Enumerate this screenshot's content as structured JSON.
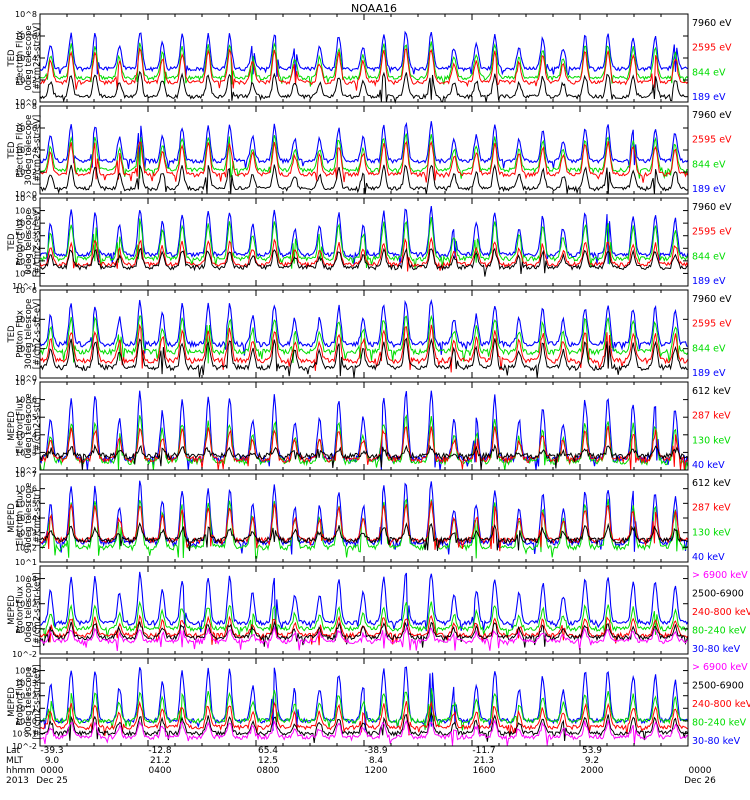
{
  "chart_data": [
    {
      "type": "line",
      "ylabel": "TED\nElectron Flux\n0deg telescope\n[#/cm2-s-str-eV]",
      "yticks": [
        "10^0",
        "10^2",
        "10^4",
        "10^6",
        "10^8"
      ],
      "ylog": true,
      "ylim": [
        1,
        100000000
      ],
      "legend": [
        {
          "name": "7960 eV",
          "color": "#000000"
        },
        {
          "name": "2595 eV",
          "color": "#ff0000"
        },
        {
          "name": "844 eV",
          "color": "#00dd00"
        },
        {
          "name": "189 eV",
          "color": "#0000ff"
        }
      ],
      "series": [
        {
          "name": "189 eV",
          "color": "#0000ff",
          "base": 1000,
          "peak": 3000000
        },
        {
          "name": "844 eV",
          "color": "#00dd00",
          "base": 150,
          "peak": 300000
        },
        {
          "name": "2595 eV",
          "color": "#ff0000",
          "base": 60,
          "peak": 80000
        },
        {
          "name": "7960 eV",
          "color": "#000000",
          "base": 3,
          "peak": 500
        }
      ]
    },
    {
      "type": "line",
      "ylabel": "TED\nElectron Flux\n30deg telescope\n[#/cm2-s-str-eV]",
      "yticks": [
        "10^0",
        "10^2",
        "10^4",
        "10^6",
        "10^8"
      ],
      "ylog": true,
      "ylim": [
        1,
        100000000
      ],
      "legend": [
        {
          "name": "7960 eV",
          "color": "#000000"
        },
        {
          "name": "2595 eV",
          "color": "#ff0000"
        },
        {
          "name": "844 eV",
          "color": "#00dd00"
        },
        {
          "name": "189 eV",
          "color": "#0000ff"
        }
      ],
      "series": [
        {
          "name": "189 eV",
          "color": "#0000ff",
          "base": 1000,
          "peak": 3000000
        },
        {
          "name": "844 eV",
          "color": "#00dd00",
          "base": 150,
          "peak": 300000
        },
        {
          "name": "2595 eV",
          "color": "#ff0000",
          "base": 60,
          "peak": 80000
        },
        {
          "name": "7960 eV",
          "color": "#000000",
          "base": 3,
          "peak": 500
        }
      ]
    },
    {
      "type": "line",
      "ylabel": "TED\nProton Flux\n0deg telescope\n[#/cm2-s-str-eV]",
      "yticks": [
        "10^-1",
        "10^0",
        "10^1",
        "10^2",
        "10^3",
        "10^4",
        "10^5",
        "10^6"
      ],
      "ylog": true,
      "ylim": [
        0.1,
        1000000
      ],
      "legend": [
        {
          "name": "7960 eV",
          "color": "#000000"
        },
        {
          "name": "2595 eV",
          "color": "#ff0000"
        },
        {
          "name": "844 eV",
          "color": "#00dd00"
        },
        {
          "name": "189 eV",
          "color": "#0000ff"
        }
      ],
      "series": [
        {
          "name": "189 eV",
          "color": "#0000ff",
          "base": 30,
          "peak": 200000
        },
        {
          "name": "844 eV",
          "color": "#00dd00",
          "base": 15,
          "peak": 20000
        },
        {
          "name": "2595 eV",
          "color": "#ff0000",
          "base": 5,
          "peak": 500
        },
        {
          "name": "7960 eV",
          "color": "#000000",
          "base": 3,
          "peak": 100
        }
      ]
    },
    {
      "type": "line",
      "ylabel": "TED\nProton Flux\n30deg telescope\n[#/cm2-s-str-eV]",
      "yticks": [
        "10^0",
        "10^2",
        "10^4",
        "10^6"
      ],
      "ylog": true,
      "ylim": [
        1,
        1000000
      ],
      "legend": [
        {
          "name": "7960 eV",
          "color": "#000000"
        },
        {
          "name": "2595 eV",
          "color": "#ff0000"
        },
        {
          "name": "844 eV",
          "color": "#00dd00"
        },
        {
          "name": "189 eV",
          "color": "#0000ff"
        }
      ],
      "series": [
        {
          "name": "189 eV",
          "color": "#0000ff",
          "base": 200,
          "peak": 200000
        },
        {
          "name": "844 eV",
          "color": "#00dd00",
          "base": 60,
          "peak": 20000
        },
        {
          "name": "2595 eV",
          "color": "#ff0000",
          "base": 15,
          "peak": 3000
        },
        {
          "name": "7960 eV",
          "color": "#000000",
          "base": 5,
          "peak": 500
        }
      ]
    },
    {
      "type": "line",
      "ylabel": "MEPED\nElectron Flux\n0deg telescope\n[#/cm2-s-str]",
      "yticks": [
        "10^2",
        "10^3",
        "10^4",
        "10^5",
        "10^6",
        "10^7"
      ],
      "ylog": true,
      "ylim": [
        100,
        10000000
      ],
      "legend": [
        {
          "name": "612 keV",
          "color": "#000000"
        },
        {
          "name": "287 keV",
          "color": "#ff0000"
        },
        {
          "name": "130 keV",
          "color": "#00dd00"
        },
        {
          "name": "40 keV",
          "color": "#0000ff"
        }
      ],
      "series": [
        {
          "name": "40 keV",
          "color": "#0000ff",
          "base": 400,
          "peak": 3000000
        },
        {
          "name": "130 keV",
          "color": "#00dd00",
          "base": 300,
          "peak": 100000
        },
        {
          "name": "287 keV",
          "color": "#ff0000",
          "base": 400,
          "peak": 30000
        },
        {
          "name": "612 keV",
          "color": "#000000",
          "base": 600,
          "peak": 2000
        }
      ]
    },
    {
      "type": "line",
      "ylabel": "MEPED\nElectron Flux\n90deg telescope\n[#/cm2-s-str]",
      "yticks": [
        "10^1",
        "10^2",
        "10^3",
        "10^4",
        "10^5",
        "10^6",
        "10^7"
      ],
      "ylog": true,
      "ylim": [
        10,
        10000000
      ],
      "legend": [
        {
          "name": "612 keV",
          "color": "#000000"
        },
        {
          "name": "287 keV",
          "color": "#ff0000"
        },
        {
          "name": "130 keV",
          "color": "#00dd00"
        },
        {
          "name": "40 keV",
          "color": "#0000ff"
        }
      ],
      "series": [
        {
          "name": "40 keV",
          "color": "#0000ff",
          "base": 200,
          "peak": 3000000
        },
        {
          "name": "130 keV",
          "color": "#00dd00",
          "base": 100,
          "peak": 300000
        },
        {
          "name": "287 keV",
          "color": "#ff0000",
          "base": 300,
          "peak": 100000
        },
        {
          "name": "612 keV",
          "color": "#000000",
          "base": 300,
          "peak": 3000
        }
      ]
    },
    {
      "type": "line",
      "ylabel": "MEPED\nProton Flux\n0deg telescope\n[#/cm2-s-str-keV]",
      "yticks": [
        "10^-2",
        "10^0",
        "10^2",
        "10^4"
      ],
      "ylog": true,
      "ylim": [
        0.01,
        100000
      ],
      "legend": [
        {
          "name": "> 6900 keV",
          "color": "#ff00ff"
        },
        {
          "name": "2500-6900",
          "color": "#000000"
        },
        {
          "name": "240-800 keV",
          "color": "#ff0000"
        },
        {
          "name": "80-240 keV",
          "color": "#00dd00"
        },
        {
          "name": "30-80 keV",
          "color": "#0000ff"
        }
      ],
      "series": [
        {
          "name": "30-80 keV",
          "color": "#0000ff",
          "base": 3,
          "peak": 30000
        },
        {
          "name": "80-240 keV",
          "color": "#00dd00",
          "base": 1,
          "peak": 100
        },
        {
          "name": "240-800 keV",
          "color": "#ff0000",
          "base": 0.3,
          "peak": 10
        },
        {
          "name": "2500-6900",
          "color": "#000000",
          "base": 0.2,
          "peak": 3
        },
        {
          "name": "> 6900 keV",
          "color": "#ff00ff",
          "base": 0.1,
          "peak": 1
        }
      ]
    },
    {
      "type": "line",
      "ylabel": "MEPED\nProton Flux\n90deg telescope\n[#/cm2-s-str-keV]",
      "yticks": [
        "10^-2",
        "10^-1",
        "10^0",
        "10^1",
        "10^2",
        "10^3",
        "10^4"
      ],
      "ylog": true,
      "ylim": [
        0.01,
        100000
      ],
      "legend": [
        {
          "name": "> 6900 keV",
          "color": "#ff00ff"
        },
        {
          "name": "2500-6900",
          "color": "#000000"
        },
        {
          "name": "240-800 keV",
          "color": "#ff0000"
        },
        {
          "name": "80-240 keV",
          "color": "#00dd00"
        },
        {
          "name": "30-80 keV",
          "color": "#0000ff"
        }
      ],
      "series": [
        {
          "name": "30-80 keV",
          "color": "#0000ff",
          "base": 1,
          "peak": 30000
        },
        {
          "name": "80-240 keV",
          "color": "#00dd00",
          "base": 1,
          "peak": 300
        },
        {
          "name": "240-800 keV",
          "color": "#ff0000",
          "base": 0.3,
          "peak": 30
        },
        {
          "name": "2500-6900",
          "color": "#000000",
          "base": 0.1,
          "peak": 3
        },
        {
          "name": "> 6900 keV",
          "color": "#ff00ff",
          "base": 0.05,
          "peak": 1
        }
      ]
    }
  ],
  "title": "NOAA16",
  "footer": {
    "row_labels": [
      "Lat",
      "MLT",
      "hhmm",
      "2013"
    ],
    "columns": [
      {
        "lat": "-39.3",
        "mlt": "9.0",
        "hhmm": "0000",
        "date": "Dec 25"
      },
      {
        "lat": "-12.8",
        "mlt": "21.2",
        "hhmm": "0400",
        "date": ""
      },
      {
        "lat": "65.4",
        "mlt": "12.5",
        "hhmm": "0800",
        "date": ""
      },
      {
        "lat": "-38.9",
        "mlt": "8.4",
        "hhmm": "1200",
        "date": ""
      },
      {
        "lat": "-11.7",
        "mlt": "21.3",
        "hhmm": "1600",
        "date": ""
      },
      {
        "lat": "53.9",
        "mlt": "9.2",
        "hhmm": "2000",
        "date": ""
      },
      {
        "lat": "",
        "mlt": "",
        "hhmm": "0000",
        "date": "Dec 26"
      }
    ]
  }
}
